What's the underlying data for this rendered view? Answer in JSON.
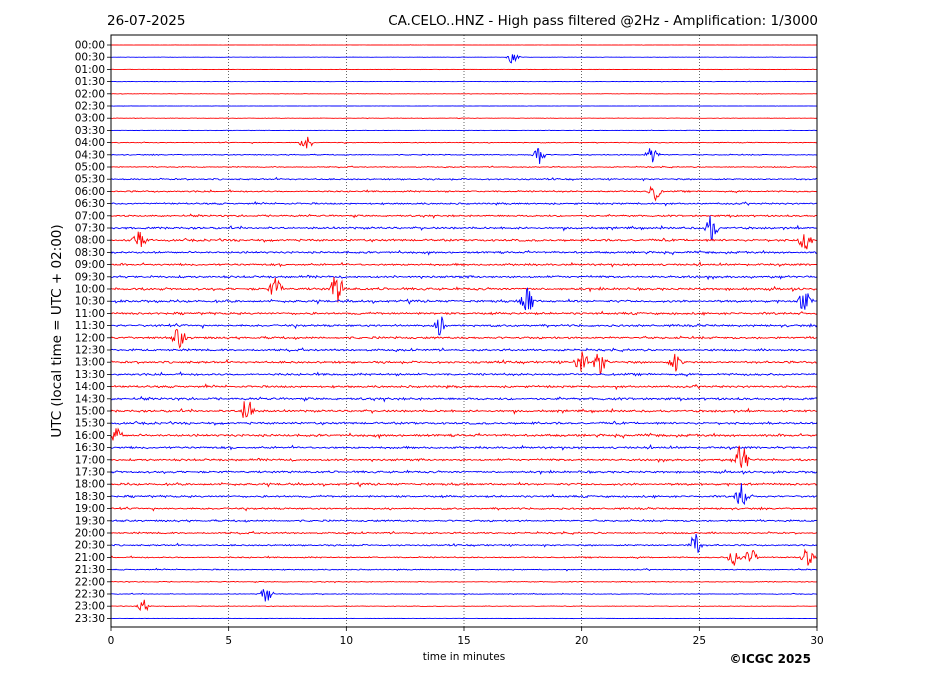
{
  "chart_data": {
    "type": "line",
    "date": "26-07-2025",
    "title": "CA.CELO..HNZ - High pass filtered @2Hz - Amplification: 1/3000",
    "xlabel": "time in minutes",
    "ylabel": "UTC (local time = UTC + 02:00)",
    "copyright": "©ICGC 2025",
    "xlim": [
      0,
      30
    ],
    "x_ticks": [
      "0",
      "5",
      "10",
      "15",
      "20",
      "25",
      "30"
    ],
    "rows": [
      "00:00",
      "00:30",
      "01:00",
      "01:30",
      "02:00",
      "02:30",
      "03:00",
      "03:30",
      "04:00",
      "04:30",
      "05:00",
      "05:30",
      "06:00",
      "06:30",
      "07:00",
      "07:30",
      "08:00",
      "08:30",
      "09:00",
      "09:30",
      "10:00",
      "10:30",
      "11:00",
      "11:30",
      "12:00",
      "12:30",
      "13:00",
      "13:30",
      "14:00",
      "14:30",
      "15:00",
      "15:30",
      "16:00",
      "16:30",
      "17:00",
      "17:30",
      "18:00",
      "18:30",
      "19:00",
      "19:30",
      "20:00",
      "20:30",
      "21:00",
      "21:30",
      "22:00",
      "22:30",
      "23:00",
      "23:30"
    ],
    "row_colors": [
      "#ff0000",
      "#0000ff"
    ],
    "vertical_gridlines_at": [
      5,
      10,
      15,
      20,
      25
    ],
    "noise_level": [
      0.05,
      0.05,
      0.06,
      0.08,
      0.07,
      0.06,
      0.07,
      0.08,
      0.15,
      0.18,
      0.2,
      0.28,
      0.3,
      0.32,
      0.35,
      0.4,
      0.42,
      0.38,
      0.4,
      0.42,
      0.45,
      0.45,
      0.42,
      0.42,
      0.42,
      0.4,
      0.42,
      0.42,
      0.4,
      0.45,
      0.42,
      0.42,
      0.45,
      0.42,
      0.4,
      0.4,
      0.42,
      0.38,
      0.35,
      0.35,
      0.32,
      0.3,
      0.25,
      0.2,
      0.15,
      0.15,
      0.1,
      0.05
    ],
    "events": [
      {
        "row": "00:30",
        "minute": 17.1,
        "amp": 0.6
      },
      {
        "row": "04:00",
        "minute": 8.3,
        "amp": 0.7
      },
      {
        "row": "04:30",
        "minute": 18.2,
        "amp": 0.8
      },
      {
        "row": "04:30",
        "minute": 23.0,
        "amp": 0.7
      },
      {
        "row": "06:00",
        "minute": 23.1,
        "amp": 0.8
      },
      {
        "row": "07:30",
        "minute": 25.5,
        "amp": 1.0
      },
      {
        "row": "08:00",
        "minute": 29.5,
        "amp": 1.0
      },
      {
        "row": "08:00",
        "minute": 1.2,
        "amp": 0.8
      },
      {
        "row": "10:00",
        "minute": 7.0,
        "amp": 0.9
      },
      {
        "row": "10:00",
        "minute": 9.6,
        "amp": 1.4
      },
      {
        "row": "10:30",
        "minute": 17.7,
        "amp": 1.6
      },
      {
        "row": "10:30",
        "minute": 29.5,
        "amp": 1.0
      },
      {
        "row": "11:30",
        "minute": 14.0,
        "amp": 0.8
      },
      {
        "row": "12:00",
        "minute": 2.9,
        "amp": 0.9
      },
      {
        "row": "13:00",
        "minute": 20.0,
        "amp": 1.2
      },
      {
        "row": "13:00",
        "minute": 20.8,
        "amp": 1.0
      },
      {
        "row": "13:00",
        "minute": 24.0,
        "amp": 0.8
      },
      {
        "row": "15:00",
        "minute": 5.8,
        "amp": 1.2
      },
      {
        "row": "16:00",
        "minute": 0.2,
        "amp": 0.8
      },
      {
        "row": "17:00",
        "minute": 26.8,
        "amp": 1.6
      },
      {
        "row": "18:30",
        "minute": 26.8,
        "amp": 1.2
      },
      {
        "row": "20:30",
        "minute": 24.8,
        "amp": 1.0
      },
      {
        "row": "21:00",
        "minute": 26.5,
        "amp": 0.8
      },
      {
        "row": "21:00",
        "minute": 27.2,
        "amp": 0.8
      },
      {
        "row": "21:00",
        "minute": 29.6,
        "amp": 0.8
      },
      {
        "row": "22:30",
        "minute": 6.6,
        "amp": 0.7
      },
      {
        "row": "23:00",
        "minute": 1.4,
        "amp": 0.5
      }
    ],
    "grid": "vertical dotted",
    "legend": "none"
  }
}
